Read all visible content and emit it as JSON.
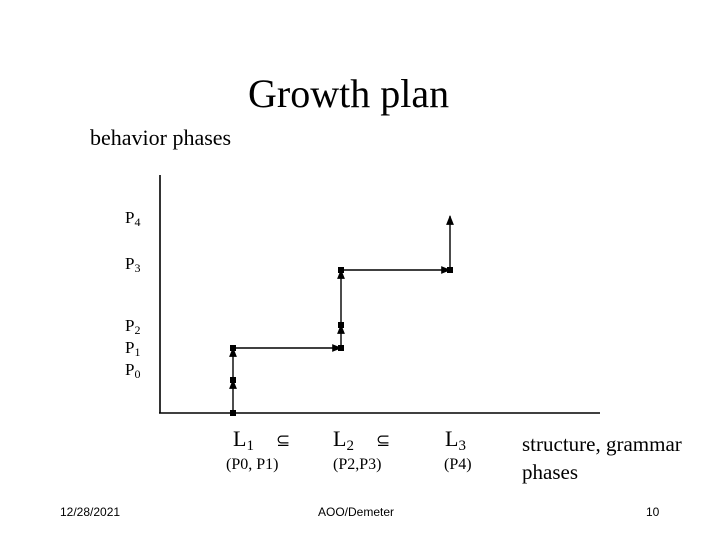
{
  "title": "Growth plan",
  "subtitle": "behavior phases",
  "y_labels": [
    {
      "base": "P",
      "sub": "4"
    },
    {
      "base": "P",
      "sub": "3"
    },
    {
      "base": "P",
      "sub": "2"
    },
    {
      "base": "P",
      "sub": "1"
    },
    {
      "base": "P",
      "sub": "0"
    }
  ],
  "x_labels": [
    {
      "base": "L",
      "sub": "1",
      "subset": "⊆",
      "phases": "(P0, P1)"
    },
    {
      "base": "L",
      "sub": "2",
      "subset": "⊆",
      "phases": "(P2,P3)"
    },
    {
      "base": "L",
      "sub": "3",
      "subset": "",
      "phases": "(P4)"
    }
  ],
  "x_axis_text": [
    "structure, grammar",
    "phases"
  ],
  "footer": {
    "date": "12/28/2021",
    "center": "AOO/Demeter",
    "page": "10"
  }
}
